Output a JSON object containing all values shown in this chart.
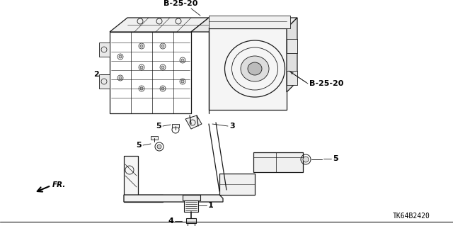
{
  "background_color": "#ffffff",
  "line_color": "#1a1a1a",
  "text_color": "#000000",
  "labels": {
    "B_25_20_top": "B-25-20",
    "B_25_20_right": "B-25-20",
    "part1": "1",
    "part2": "2",
    "part3": "3",
    "part4": "4",
    "part5a": "5",
    "part5b": "5",
    "part5c": "5",
    "fr": "FR.",
    "part_num": "TK64B2420"
  },
  "fig_width": 6.4,
  "fig_height": 3.19,
  "dpi": 100
}
